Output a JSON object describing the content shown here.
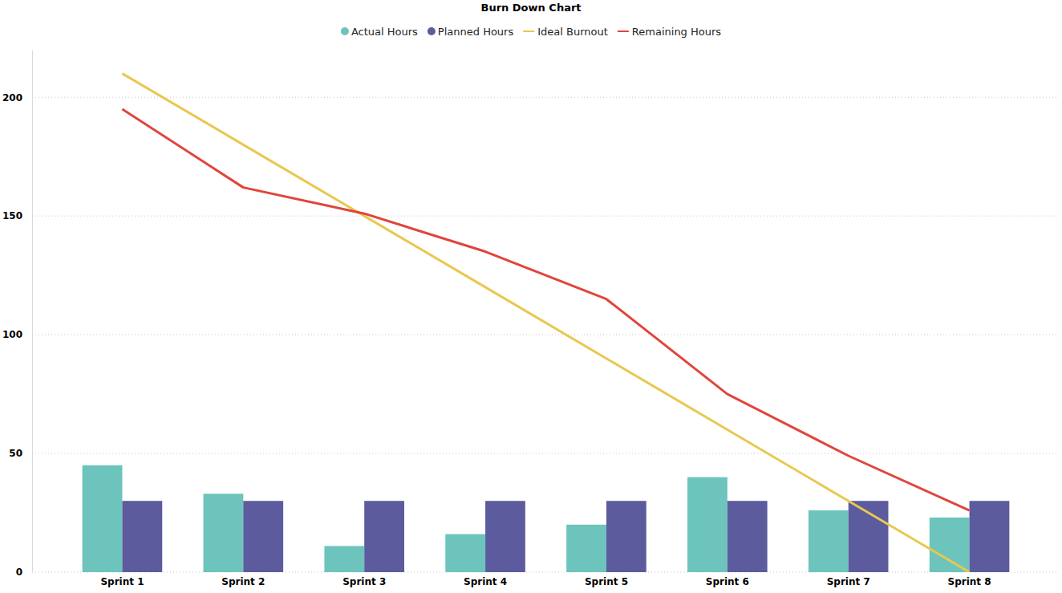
{
  "chart_data": {
    "type": "bar",
    "title": "Burn Down Chart",
    "categories": [
      "Sprint 1",
      "Sprint 2",
      "Sprint 3",
      "Sprint 4",
      "Sprint 5",
      "Sprint 6",
      "Sprint 7",
      "Sprint 8"
    ],
    "series": [
      {
        "name": "Actual Hours",
        "type": "bar",
        "color": "#6cc4bc",
        "values": [
          45,
          33,
          11,
          16,
          20,
          40,
          26,
          23
        ]
      },
      {
        "name": "Planned Hours",
        "type": "bar",
        "color": "#5c5b9e",
        "values": [
          30,
          30,
          30,
          30,
          30,
          30,
          30,
          30
        ]
      },
      {
        "name": "Ideal Burnout",
        "type": "line",
        "color": "#e8c84f",
        "values": [
          210,
          180,
          150,
          120,
          90,
          60,
          30,
          0
        ]
      },
      {
        "name": "Remaining Hours",
        "type": "line",
        "color": "#e0453c",
        "values": [
          195,
          162,
          151,
          135,
          115,
          75,
          49,
          26
        ]
      }
    ],
    "ylim": [
      0,
      220
    ],
    "yticks": [
      0,
      50,
      100,
      150,
      200
    ],
    "grid": true,
    "legend": "top"
  }
}
